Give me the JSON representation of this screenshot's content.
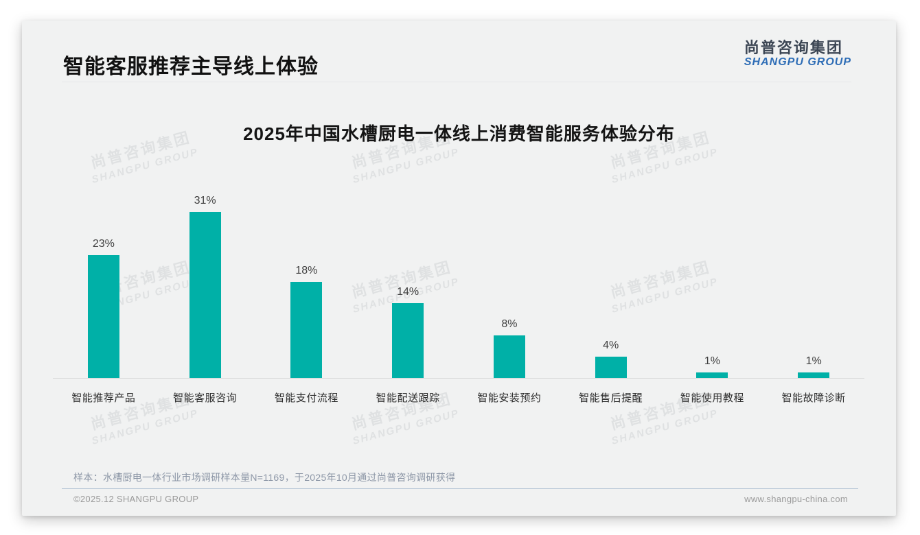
{
  "page": {
    "title": "智能客服推荐主导线上体验",
    "logo": {
      "cn": "尚普咨询集团",
      "en": "SHANGPU GROUP"
    },
    "watermark": {
      "cn": "尚普咨询集团",
      "en": "SHANGPU GROUP"
    },
    "note": "样本：水槽厨电一体行业市场调研样本量N=1169，于2025年10月通过尚普咨询调研获得",
    "footer": {
      "left": "©2025.12 SHANGPU GROUP",
      "right": "www.shangpu-china.com"
    }
  },
  "colors": {
    "bar": "#00b0a7",
    "logo_cn": "#3c4654",
    "logo_en": "#2e6db6",
    "slide_bg": "#f1f2f2"
  },
  "chart_data": {
    "type": "bar",
    "title": "2025年中国水槽厨电一体线上消费智能服务体验分布",
    "categories": [
      "智能推荐产品",
      "智能客服咨询",
      "智能支付流程",
      "智能配送跟踪",
      "智能安装预约",
      "智能售后提醒",
      "智能使用教程",
      "智能故障诊断"
    ],
    "values": [
      23,
      31,
      18,
      14,
      8,
      4,
      1,
      1
    ],
    "value_labels": [
      "23%",
      "31%",
      "18%",
      "14%",
      "8%",
      "4%",
      "1%",
      "1%"
    ],
    "unit": "%",
    "xlabel": "",
    "ylabel": "",
    "ylim": [
      0,
      35
    ],
    "grid": false,
    "legend": null,
    "bar_color": "#00b0a7"
  }
}
